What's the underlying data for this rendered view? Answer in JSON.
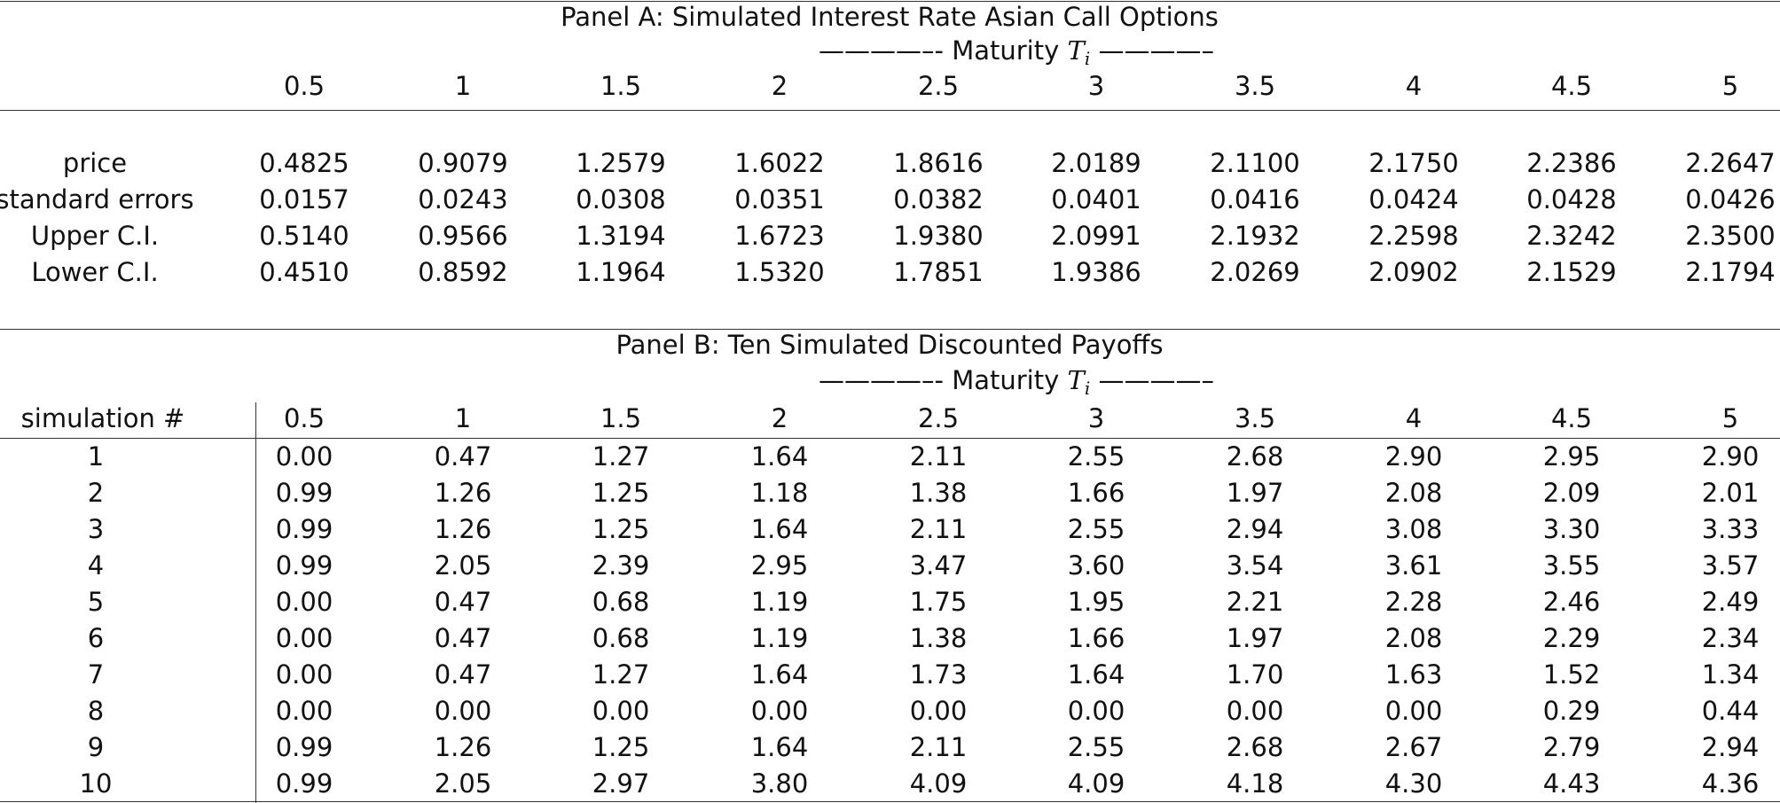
{
  "panel_a": {
    "title": "Panel A: Simulated Interest Rate Asian Call Options",
    "maturity_label": "————–- Maturity",
    "maturity_symbol": "T",
    "maturity_subscript": "i",
    "maturity_trail": "————–",
    "columns": [
      "0.5",
      "1",
      "1.5",
      "2",
      "2.5",
      "3",
      "3.5",
      "4",
      "4.5",
      "5"
    ],
    "rows": [
      {
        "label": "price",
        "values": [
          "0.4825",
          "0.9079",
          "1.2579",
          "1.6022",
          "1.8616",
          "2.0189",
          "2.1100",
          "2.1750",
          "2.2386",
          "2.2647"
        ]
      },
      {
        "label": "standard errors",
        "values": [
          "0.0157",
          "0.0243",
          "0.0308",
          "0.0351",
          "0.0382",
          "0.0401",
          "0.0416",
          "0.0424",
          "0.0428",
          "0.0426"
        ]
      },
      {
        "label": "Upper C.I.",
        "values": [
          "0.5140",
          "0.9566",
          "1.3194",
          "1.6723",
          "1.9380",
          "2.0991",
          "2.1932",
          "2.2598",
          "2.3242",
          "2.3500"
        ]
      },
      {
        "label": "Lower C.I.",
        "values": [
          "0.4510",
          "0.8592",
          "1.1964",
          "1.5320",
          "1.7851",
          "1.9386",
          "2.0269",
          "2.0902",
          "2.1529",
          "2.1794"
        ]
      }
    ]
  },
  "panel_b": {
    "title": "Panel B: Ten Simulated Discounted Payoffs",
    "maturity_label": "————–- Maturity",
    "maturity_symbol": "T",
    "maturity_subscript": "i",
    "maturity_trail": "————–",
    "row_header": "simulation #",
    "columns": [
      "0.5",
      "1",
      "1.5",
      "2",
      "2.5",
      "3",
      "3.5",
      "4",
      "4.5",
      "5"
    ],
    "rows": [
      {
        "label": "1",
        "values": [
          "0.00",
          "0.47",
          "1.27",
          "1.64",
          "2.11",
          "2.55",
          "2.68",
          "2.90",
          "2.95",
          "2.90"
        ]
      },
      {
        "label": "2",
        "values": [
          "0.99",
          "1.26",
          "1.25",
          "1.18",
          "1.38",
          "1.66",
          "1.97",
          "2.08",
          "2.09",
          "2.01"
        ]
      },
      {
        "label": "3",
        "values": [
          "0.99",
          "1.26",
          "1.25",
          "1.64",
          "2.11",
          "2.55",
          "2.94",
          "3.08",
          "3.30",
          "3.33"
        ]
      },
      {
        "label": "4",
        "values": [
          "0.99",
          "2.05",
          "2.39",
          "2.95",
          "3.47",
          "3.60",
          "3.54",
          "3.61",
          "3.55",
          "3.57"
        ]
      },
      {
        "label": "5",
        "values": [
          "0.00",
          "0.47",
          "0.68",
          "1.19",
          "1.75",
          "1.95",
          "2.21",
          "2.28",
          "2.46",
          "2.49"
        ]
      },
      {
        "label": "6",
        "values": [
          "0.00",
          "0.47",
          "0.68",
          "1.19",
          "1.38",
          "1.66",
          "1.97",
          "2.08",
          "2.29",
          "2.34"
        ]
      },
      {
        "label": "7",
        "values": [
          "0.00",
          "0.47",
          "1.27",
          "1.64",
          "1.73",
          "1.64",
          "1.70",
          "1.63",
          "1.52",
          "1.34"
        ]
      },
      {
        "label": "8",
        "values": [
          "0.00",
          "0.00",
          "0.00",
          "0.00",
          "0.00",
          "0.00",
          "0.00",
          "0.00",
          "0.29",
          "0.44"
        ]
      },
      {
        "label": "9",
        "values": [
          "0.99",
          "1.26",
          "1.25",
          "1.64",
          "2.11",
          "2.55",
          "2.68",
          "2.67",
          "2.79",
          "2.94"
        ]
      },
      {
        "label": "10",
        "values": [
          "0.99",
          "2.05",
          "2.97",
          "3.80",
          "4.09",
          "4.09",
          "4.18",
          "4.30",
          "4.43",
          "4.36"
        ]
      }
    ]
  }
}
